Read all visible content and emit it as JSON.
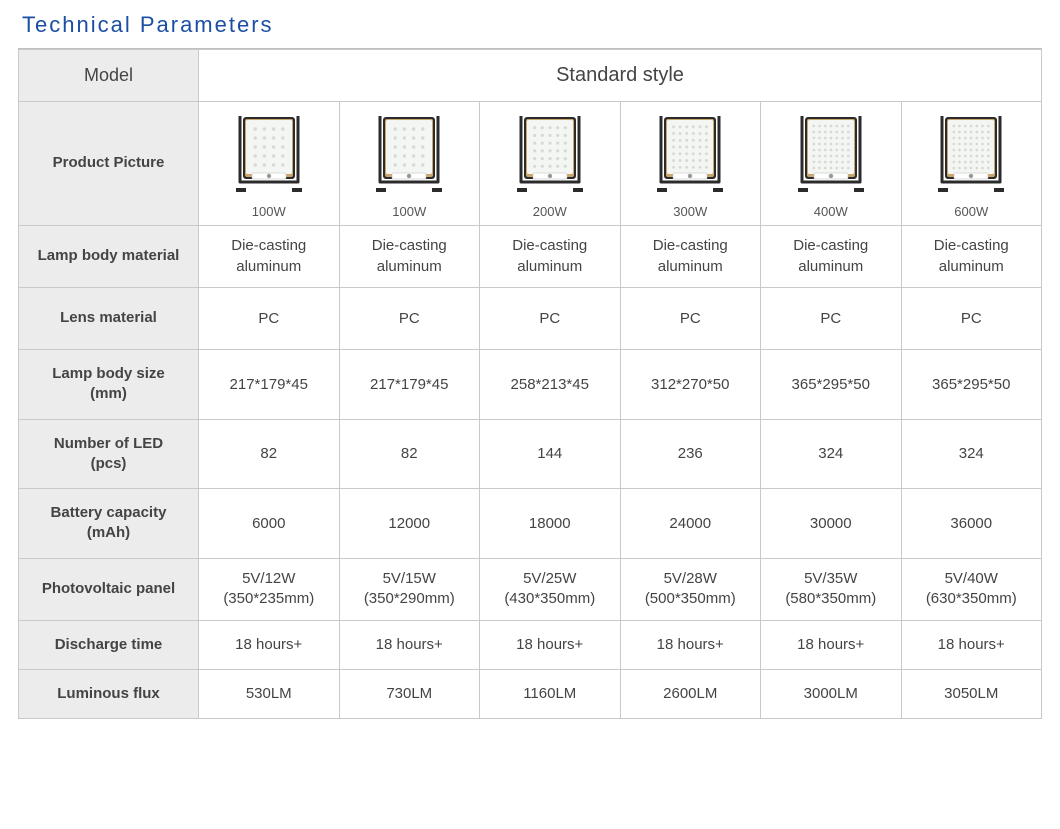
{
  "title": "Technical Parameters",
  "header": {
    "model_label": "Model",
    "style_label": "Standard style"
  },
  "rows": {
    "product_picture": "Product Picture",
    "lamp_body_material": "Lamp body material",
    "lens_material": "Lens material",
    "lamp_body_size": "Lamp body size\n(mm)",
    "number_of_led": "Number of LED\n(pcs)",
    "battery_capacity": "Battery capacity\n(mAh)",
    "photovoltaic_panel": "Photovoltaic panel",
    "discharge_time": "Discharge time",
    "luminous_flux": "Luminous flux"
  },
  "columns": [
    {
      "watt": "100W",
      "lamp_body_material": "Die-casting\naluminum",
      "lens_material": "PC",
      "lamp_body_size": "217*179*45",
      "number_of_led": "82",
      "battery_capacity": "6000",
      "photovoltaic_panel": "5V/12W\n(350*235mm)",
      "discharge_time": "18 hours+",
      "luminous_flux": "530LM",
      "led_grid": [
        4,
        5
      ]
    },
    {
      "watt": "100W",
      "lamp_body_material": "Die-casting\naluminum",
      "lens_material": "PC",
      "lamp_body_size": "217*179*45",
      "number_of_led": "82",
      "battery_capacity": "12000",
      "photovoltaic_panel": "5V/15W\n(350*290mm)",
      "discharge_time": "18 hours+",
      "luminous_flux": "730LM",
      "led_grid": [
        4,
        5
      ]
    },
    {
      "watt": "200W",
      "lamp_body_material": "Die-casting\naluminum",
      "lens_material": "PC",
      "lamp_body_size": "258*213*45",
      "number_of_led": "144",
      "battery_capacity": "18000",
      "photovoltaic_panel": "5V/25W\n(430*350mm)",
      "discharge_time": "18 hours+",
      "luminous_flux": "1160LM",
      "led_grid": [
        5,
        6
      ]
    },
    {
      "watt": "300W",
      "lamp_body_material": "Die-casting\naluminum",
      "lens_material": "PC",
      "lamp_body_size": "312*270*50",
      "number_of_led": "236",
      "battery_capacity": "24000",
      "photovoltaic_panel": "5V/28W\n(500*350mm)",
      "discharge_time": "18 hours+",
      "luminous_flux": "2600LM",
      "led_grid": [
        6,
        7
      ]
    },
    {
      "watt": "400W",
      "lamp_body_material": "Die-casting\naluminum",
      "lens_material": "PC",
      "lamp_body_size": "365*295*50",
      "number_of_led": "324",
      "battery_capacity": "30000",
      "photovoltaic_panel": "5V/35W\n(580*350mm)",
      "discharge_time": "18 hours+",
      "luminous_flux": "3000LM",
      "led_grid": [
        7,
        8
      ]
    },
    {
      "watt": "600W",
      "lamp_body_material": "Die-casting\naluminum",
      "lens_material": "PC",
      "lamp_body_size": "365*295*50",
      "number_of_led": "324",
      "battery_capacity": "36000",
      "photovoltaic_panel": "5V/40W\n(630*350mm)",
      "discharge_time": "18 hours+",
      "luminous_flux": "3050LM",
      "led_grid": [
        7,
        8
      ]
    }
  ],
  "style": {
    "title_color": "#1b4fa3",
    "border_color": "#c9c9c9",
    "label_bg": "#ececec",
    "cell_bg": "#ffffff",
    "text_color": "#444444",
    "lamp_frame": "#2b2b2b",
    "lamp_bezel": "#c9a66b",
    "lamp_face": "#f4f6f3",
    "lamp_led": "#d7dad4"
  }
}
